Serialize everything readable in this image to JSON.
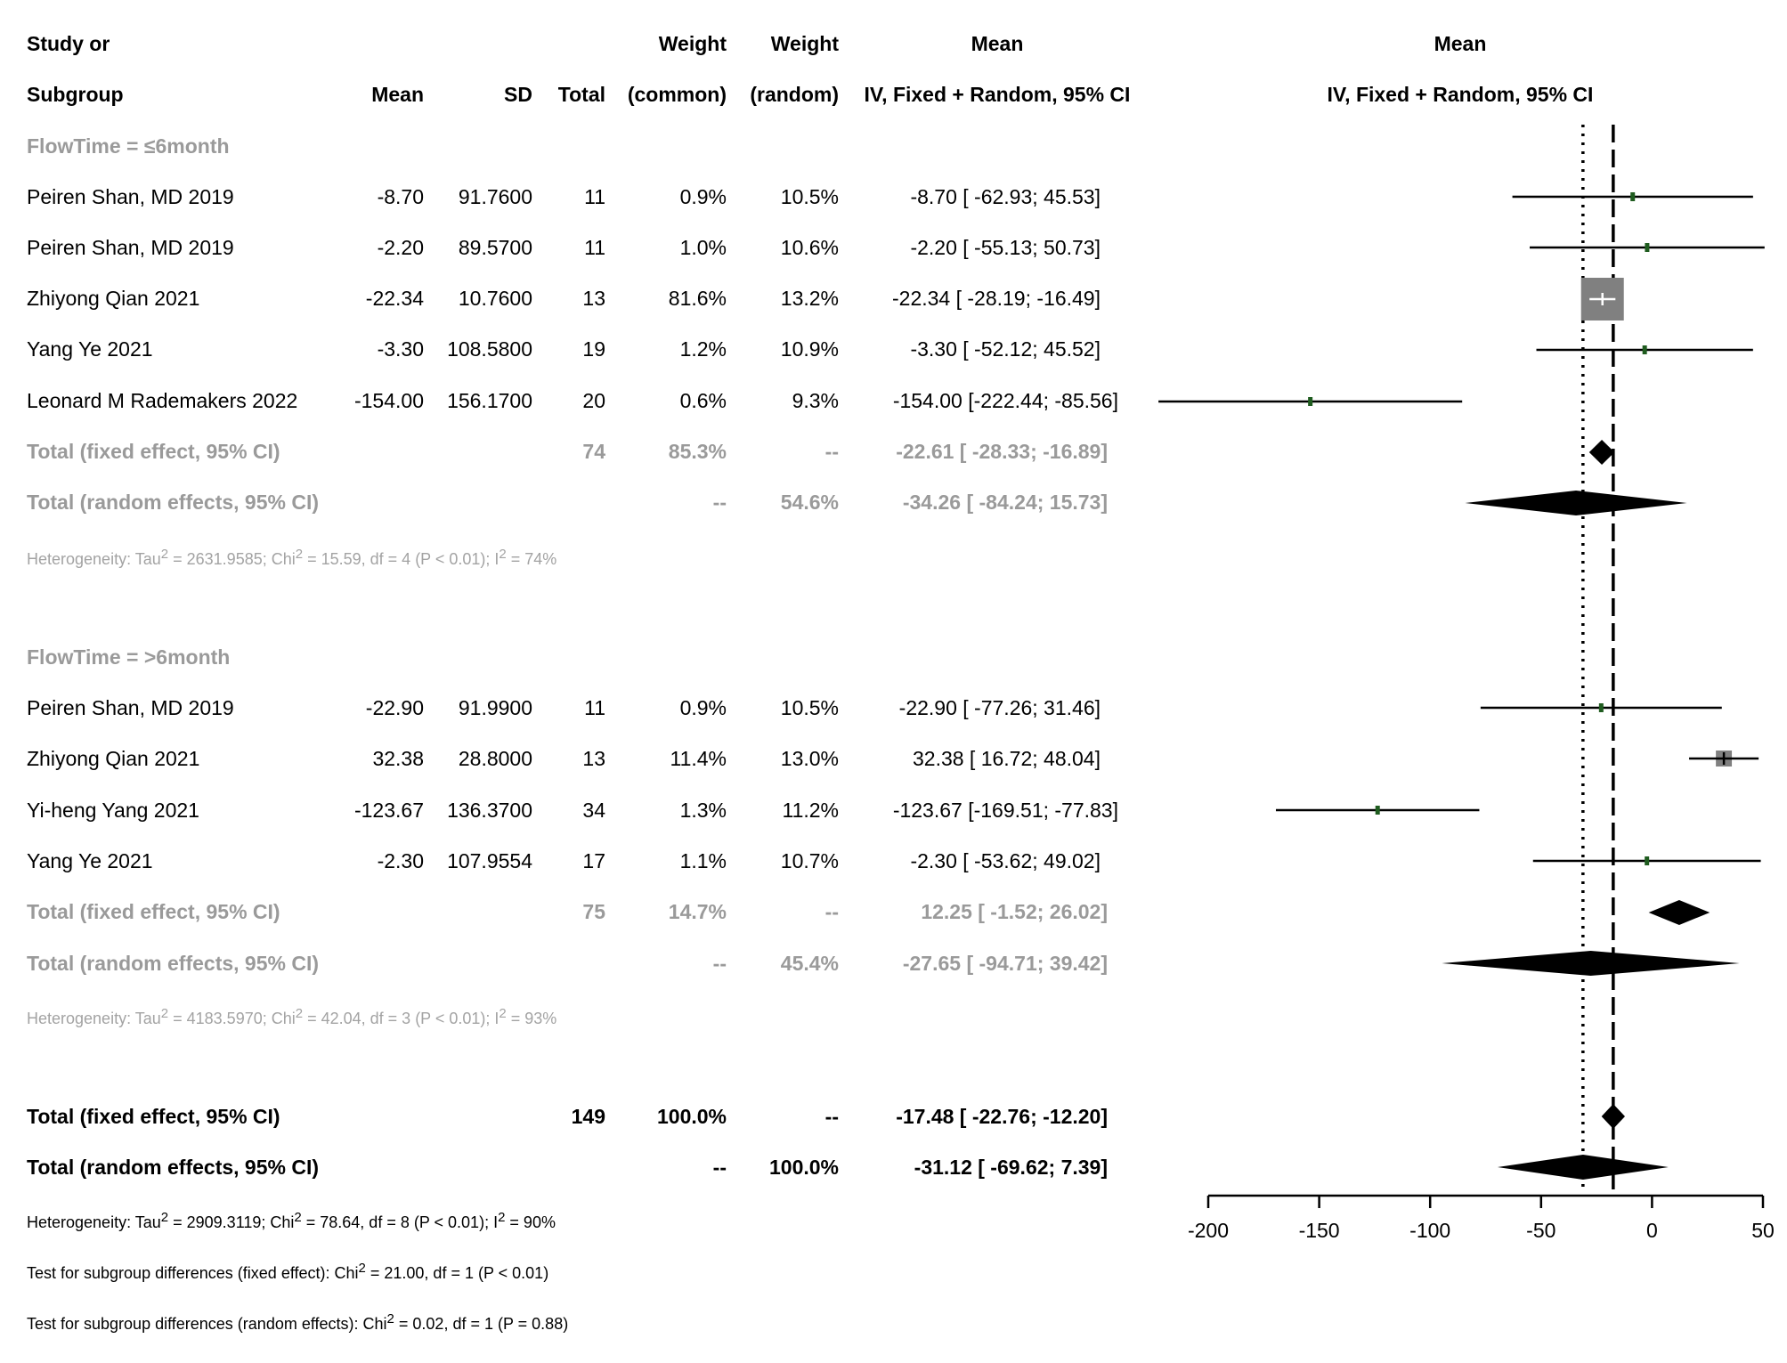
{
  "headers": {
    "study_line1": "Study or",
    "study_line2": "Subgroup",
    "mean": "Mean",
    "sd": "SD",
    "total": "Total",
    "weight_common_line1": "Weight",
    "weight_common_line2": "(common)",
    "weight_random_line1": "Weight",
    "weight_random_line2": "(random)",
    "ci_line1": "Mean",
    "ci_line2": "IV, Fixed + Random, 95% CI",
    "plot_line1": "Mean",
    "plot_line2": "IV, Fixed + Random, 95% CI"
  },
  "subgroups": [
    {
      "label": "FlowTime = ≤6month",
      "studies": [
        {
          "study": "Peiren Shan, MD 2019",
          "mean": "-8.70",
          "sd": "91.7600",
          "total": "11",
          "w_common": "0.9%",
          "w_random": "10.5%",
          "ci_text": "-8.70 [ -62.93;  45.53]"
        },
        {
          "study": "Peiren Shan, MD 2019",
          "mean": "-2.20",
          "sd": "89.5700",
          "total": "11",
          "w_common": "1.0%",
          "w_random": "10.6%",
          "ci_text": "-2.20 [ -55.13;  50.73]"
        },
        {
          "study": "Zhiyong Qian 2021",
          "mean": "-22.34",
          "sd": "10.7600",
          "total": "13",
          "w_common": "81.6%",
          "w_random": "13.2%",
          "ci_text": "-22.34 [ -28.19; -16.49]"
        },
        {
          "study": "Yang Ye 2021",
          "mean": "-3.30",
          "sd": "108.5800",
          "total": "19",
          "w_common": "1.2%",
          "w_random": "10.9%",
          "ci_text": "-3.30 [ -52.12;  45.52]"
        },
        {
          "study": "Leonard M Rademakers 2022",
          "mean": "-154.00",
          "sd": "156.1700",
          "total": "20",
          "w_common": "0.6%",
          "w_random": "9.3%",
          "ci_text": "-154.00 [-222.44; -85.56]"
        }
      ],
      "fixed": {
        "label": "Total (fixed effect, 95% CI)",
        "total": "74",
        "w_common": "85.3%",
        "w_random": "--",
        "ci_text": "-22.61 [ -28.33; -16.89]"
      },
      "random": {
        "label": "Total (random effects, 95% CI)",
        "w_common": "--",
        "w_random": "54.6%",
        "ci_text": "-34.26 [ -84.24;  15.73]"
      },
      "heterogeneity": {
        "prefix": "Heterogeneity: Tau",
        "tau": " = 2631.9585; Chi",
        "chi": " = 15.59, df = 4 (P < 0.01); I",
        "i2": " = 74%"
      }
    },
    {
      "label": "FlowTime = >6month",
      "studies": [
        {
          "study": "Peiren Shan, MD 2019",
          "mean": "-22.90",
          "sd": "91.9900",
          "total": "11",
          "w_common": "0.9%",
          "w_random": "10.5%",
          "ci_text": "-22.90 [ -77.26;  31.46]"
        },
        {
          "study": "Zhiyong Qian 2021",
          "mean": "32.38",
          "sd": "28.8000",
          "total": "13",
          "w_common": "11.4%",
          "w_random": "13.0%",
          "ci_text": "32.38 [  16.72;  48.04]"
        },
        {
          "study": "Yi-heng Yang 2021",
          "mean": "-123.67",
          "sd": "136.3700",
          "total": "34",
          "w_common": "1.3%",
          "w_random": "11.2%",
          "ci_text": "-123.67 [-169.51; -77.83]"
        },
        {
          "study": "Yang Ye 2021",
          "mean": "-2.30",
          "sd": "107.9554",
          "total": "17",
          "w_common": "1.1%",
          "w_random": "10.7%",
          "ci_text": "-2.30 [ -53.62;  49.02]"
        }
      ],
      "fixed": {
        "label": "Total (fixed effect, 95% CI)",
        "total": "75",
        "w_common": "14.7%",
        "w_random": "--",
        "ci_text": "12.25 [  -1.52;  26.02]"
      },
      "random": {
        "label": "Total (random effects, 95% CI)",
        "w_common": "--",
        "w_random": "45.4%",
        "ci_text": "-27.65 [ -94.71;  39.42]"
      },
      "heterogeneity": {
        "prefix": "Heterogeneity: Tau",
        "tau": " = 4183.5970; Chi",
        "chi": " = 42.04, df = 3 (P < 0.01); I",
        "i2": " = 93%"
      }
    }
  ],
  "overall": {
    "fixed": {
      "label": "Total (fixed effect, 95% CI)",
      "total": "149",
      "w_common": "100.0%",
      "w_random": "--",
      "ci_text": "-17.48 [ -22.76; -12.20]"
    },
    "random": {
      "label": "Total (random effects, 95% CI)",
      "w_common": "--",
      "w_random": "100.0%",
      "ci_text": "-31.12 [ -69.62;   7.39]"
    },
    "heterogeneity": {
      "prefix": "Heterogeneity: Tau",
      "tau": " = 2909.3119; Chi",
      "chi": " = 78.64, df = 8 (P < 0.01); I",
      "i2": " = 90%"
    },
    "test_fixed": {
      "prefix": "Test for subgroup differences (fixed effect): Chi",
      "rest": " = 21.00, df = 1 (P < 0.01)"
    },
    "test_random": {
      "prefix": "Test for subgroup differences (random effects): Chi",
      "rest": " = 0.02, df = 1 (P = 0.88)"
    },
    "superscript_two": "2"
  },
  "chart_data": {
    "type": "forest",
    "xlim": [
      -200,
      50
    ],
    "xticks": [
      "-200",
      "-150",
      "-100",
      "-50",
      "0",
      "50"
    ],
    "reference_lines": {
      "fixed": -17.48,
      "random": -31.12
    },
    "colors": {
      "point": "#1f5c1f",
      "box": "#808080",
      "diamond": "#000000"
    },
    "rows": [
      {
        "name": "Peiren Shan, MD 2019",
        "kind": "study",
        "est": -8.7,
        "lo": -62.93,
        "hi": 45.53,
        "weight": 0.9
      },
      {
        "name": "Peiren Shan, MD 2019",
        "kind": "study",
        "est": -2.2,
        "lo": -55.13,
        "hi": 50.73,
        "weight": 1.0
      },
      {
        "name": "Zhiyong Qian 2021",
        "kind": "study",
        "est": -22.34,
        "lo": -28.19,
        "hi": -16.49,
        "weight": 81.6
      },
      {
        "name": "Yang Ye 2021",
        "kind": "study",
        "est": -3.3,
        "lo": -52.12,
        "hi": 45.52,
        "weight": 1.2
      },
      {
        "name": "Leonard M Rademakers 2022",
        "kind": "study",
        "est": -154.0,
        "lo": -222.44,
        "hi": -85.56,
        "weight": 0.6
      },
      {
        "name": "Total (fixed effect, 95% CI)",
        "kind": "diamond",
        "est": -22.61,
        "lo": -28.33,
        "hi": -16.89
      },
      {
        "name": "Total (random effects, 95% CI)",
        "kind": "diamond",
        "est": -34.26,
        "lo": -84.24,
        "hi": 15.73
      },
      {
        "name": "Peiren Shan, MD 2019",
        "kind": "study",
        "est": -22.9,
        "lo": -77.26,
        "hi": 31.46,
        "weight": 0.9
      },
      {
        "name": "Zhiyong Qian 2021",
        "kind": "study",
        "est": 32.38,
        "lo": 16.72,
        "hi": 48.04,
        "weight": 11.4
      },
      {
        "name": "Yi-heng Yang 2021",
        "kind": "study",
        "est": -123.67,
        "lo": -169.51,
        "hi": -77.83,
        "weight": 1.3
      },
      {
        "name": "Yang Ye 2021",
        "kind": "study",
        "est": -2.3,
        "lo": -53.62,
        "hi": 49.02,
        "weight": 1.1
      },
      {
        "name": "Total (fixed effect, 95% CI)",
        "kind": "diamond",
        "est": 12.25,
        "lo": -1.52,
        "hi": 26.02
      },
      {
        "name": "Total (random effects, 95% CI)",
        "kind": "diamond",
        "est": -27.65,
        "lo": -94.71,
        "hi": 39.42
      },
      {
        "name": "Total (fixed effect, 95% CI)",
        "kind": "diamond",
        "est": -17.48,
        "lo": -22.76,
        "hi": -12.2
      },
      {
        "name": "Total (random effects, 95% CI)",
        "kind": "diamond",
        "est": -31.12,
        "lo": -69.62,
        "hi": 7.39
      }
    ]
  }
}
